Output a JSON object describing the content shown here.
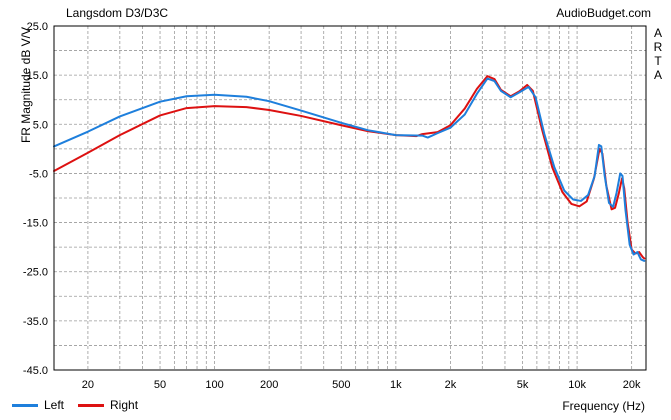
{
  "header": {
    "title": "Langsdom D3/D3C",
    "source": "AudioBudget.com",
    "watermark": [
      "A",
      "R",
      "T",
      "A"
    ]
  },
  "legend": {
    "left_label": "Left",
    "right_label": "Right"
  },
  "colors": {
    "left": "#1e7fdc",
    "right": "#dd1111",
    "grid": "#9a9a9a",
    "frame": "#000000"
  },
  "chart_data": {
    "type": "line",
    "xlabel": "Frequency (Hz)",
    "ylabel": "FR Magnitude dB V/V",
    "x_scale": "log",
    "xlim": [
      13,
      24000
    ],
    "ylim": [
      -45,
      25
    ],
    "y_ticks": [
      "25.0",
      "15.0",
      "5.0",
      "-5.0",
      "-15.0",
      "-25.0",
      "-35.0",
      "-45.0"
    ],
    "x_tick_labels": [
      "20",
      "50",
      "100",
      "200",
      "500",
      "1k",
      "2k",
      "5k",
      "10k",
      "20k"
    ],
    "x_tick_values": [
      20,
      50,
      100,
      200,
      500,
      1000,
      2000,
      5000,
      10000,
      20000
    ],
    "grid": true,
    "legend_position": "bottom-left",
    "series": [
      {
        "name": "Left",
        "points": [
          [
            13,
            0.5
          ],
          [
            20,
            3.5
          ],
          [
            30,
            6.6
          ],
          [
            50,
            9.6
          ],
          [
            70,
            10.7
          ],
          [
            100,
            11.0
          ],
          [
            150,
            10.6
          ],
          [
            200,
            9.7
          ],
          [
            300,
            7.8
          ],
          [
            500,
            5.3
          ],
          [
            700,
            3.8
          ],
          [
            1000,
            2.8
          ],
          [
            1400,
            2.7
          ],
          [
            1500,
            2.3
          ],
          [
            1700,
            3.2
          ],
          [
            2000,
            4.3
          ],
          [
            2400,
            7.0
          ],
          [
            2800,
            11.2
          ],
          [
            3200,
            14.3
          ],
          [
            3500,
            13.8
          ],
          [
            3800,
            11.8
          ],
          [
            4300,
            10.5
          ],
          [
            4800,
            11.5
          ],
          [
            5400,
            12.6
          ],
          [
            5900,
            10.5
          ],
          [
            6600,
            3.0
          ],
          [
            7500,
            -3.8
          ],
          [
            8500,
            -8.5
          ],
          [
            9500,
            -10.3
          ],
          [
            10500,
            -10.6
          ],
          [
            11500,
            -9.4
          ],
          [
            12500,
            -5.5
          ],
          [
            13200,
            0.8
          ],
          [
            13600,
            0.5
          ],
          [
            14200,
            -5.5
          ],
          [
            15000,
            -11.0
          ],
          [
            15800,
            -11.8
          ],
          [
            16500,
            -9.0
          ],
          [
            17300,
            -5.0
          ],
          [
            17800,
            -5.5
          ],
          [
            18500,
            -12.5
          ],
          [
            19500,
            -19.5
          ],
          [
            20500,
            -21.5
          ],
          [
            21500,
            -21.0
          ],
          [
            22500,
            -22.5
          ],
          [
            23500,
            -22.8
          ]
        ]
      },
      {
        "name": "Right",
        "points": [
          [
            13,
            -4.5
          ],
          [
            20,
            -0.8
          ],
          [
            30,
            2.8
          ],
          [
            50,
            6.8
          ],
          [
            70,
            8.3
          ],
          [
            100,
            8.7
          ],
          [
            150,
            8.5
          ],
          [
            200,
            7.9
          ],
          [
            300,
            6.7
          ],
          [
            500,
            4.8
          ],
          [
            700,
            3.6
          ],
          [
            1000,
            2.8
          ],
          [
            1300,
            2.6
          ],
          [
            1400,
            3.0
          ],
          [
            1700,
            3.4
          ],
          [
            2000,
            4.8
          ],
          [
            2400,
            8.2
          ],
          [
            2800,
            12.2
          ],
          [
            3200,
            14.8
          ],
          [
            3500,
            14.2
          ],
          [
            3800,
            12.0
          ],
          [
            4300,
            10.7
          ],
          [
            4800,
            11.7
          ],
          [
            5300,
            13.0
          ],
          [
            5700,
            11.8
          ],
          [
            6400,
            4.0
          ],
          [
            7300,
            -3.8
          ],
          [
            8300,
            -8.8
          ],
          [
            9300,
            -11.2
          ],
          [
            10300,
            -11.7
          ],
          [
            11300,
            -10.7
          ],
          [
            12400,
            -6.0
          ],
          [
            13300,
            0.0
          ],
          [
            13800,
            -1.0
          ],
          [
            14500,
            -7.5
          ],
          [
            15500,
            -12.3
          ],
          [
            16200,
            -12.0
          ],
          [
            17000,
            -9.0
          ],
          [
            17700,
            -6.0
          ],
          [
            18200,
            -8.0
          ],
          [
            19000,
            -15.0
          ],
          [
            20000,
            -20.5
          ],
          [
            21000,
            -21.3
          ],
          [
            22000,
            -21.0
          ],
          [
            23000,
            -22.0
          ],
          [
            23500,
            -22.3
          ]
        ]
      }
    ]
  }
}
